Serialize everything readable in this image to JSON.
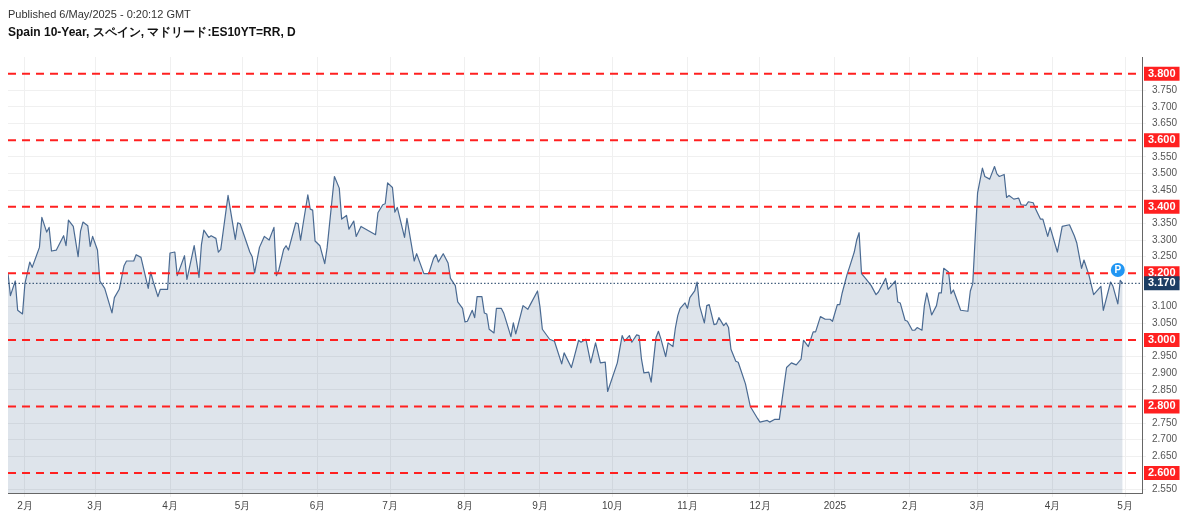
{
  "chart_data": {
    "type": "area",
    "title": "Spain 10-Year, スペイン, マドリード:ES10YT=RR, D",
    "annotations": [
      "Published 6/May/2025 - 0:20:12 GMT",
      {
        "text": "P",
        "x": "2025-04-28",
        "y": 3.21
      }
    ],
    "series": [
      {
        "color": "#4a6a92",
        "x": [
          "2024-01-25",
          "2024-01-26",
          "2024-01-28",
          "2024-01-29",
          "2024-01-31",
          "2024-02-01",
          "2024-02-03",
          "2024-02-04",
          "2024-02-07",
          "2024-02-08",
          "2024-02-10",
          "2024-02-11",
          "2024-02-12",
          "2024-02-14",
          "2024-02-17",
          "2024-02-18",
          "2024-02-19",
          "2024-02-21",
          "2024-02-23",
          "2024-02-24",
          "2024-02-25",
          "2024-02-27",
          "2024-02-28",
          "2024-02-29",
          "2024-03-02",
          "2024-03-03",
          "2024-03-05",
          "2024-03-08",
          "2024-03-09",
          "2024-03-11",
          "2024-03-13",
          "2024-03-14",
          "2024-03-17",
          "2024-03-18",
          "2024-03-20",
          "2024-03-23",
          "2024-03-24",
          "2024-03-25",
          "2024-03-27",
          "2024-03-28",
          "2024-03-31",
          "2024-04-01",
          "2024-04-03",
          "2024-04-04",
          "2024-04-07",
          "2024-04-08",
          "2024-04-11",
          "2024-04-13",
          "2024-04-14",
          "2024-04-15",
          "2024-04-17",
          "2024-04-18",
          "2024-04-20",
          "2024-04-21",
          "2024-04-22",
          "2024-04-25",
          "2024-04-28",
          "2024-04-29",
          "2024-04-30",
          "2024-05-04",
          "2024-05-05",
          "2024-05-06",
          "2024-05-08",
          "2024-05-10",
          "2024-05-12",
          "2024-05-14",
          "2024-05-15",
          "2024-05-16",
          "2024-05-18",
          "2024-05-19",
          "2024-05-20",
          "2024-05-23",
          "2024-05-24",
          "2024-05-25",
          "2024-05-26",
          "2024-05-28",
          "2024-05-29",
          "2024-05-30",
          "2024-05-31",
          "2024-06-02",
          "2024-06-04",
          "2024-06-05",
          "2024-06-08",
          "2024-06-10",
          "2024-06-11",
          "2024-06-13",
          "2024-06-14",
          "2024-06-16",
          "2024-06-17",
          "2024-06-19",
          "2024-06-25",
          "2024-06-26",
          "2024-06-28",
          "2024-06-29",
          "2024-06-30",
          "2024-07-02",
          "2024-07-03",
          "2024-07-04",
          "2024-07-07",
          "2024-07-08",
          "2024-07-11",
          "2024-07-12",
          "2024-07-15",
          "2024-07-17",
          "2024-07-19",
          "2024-07-20",
          "2024-07-21",
          "2024-07-23",
          "2024-07-25",
          "2024-07-26",
          "2024-07-28",
          "2024-07-29",
          "2024-07-31",
          "2024-08-01",
          "2024-08-02",
          "2024-08-04",
          "2024-08-05",
          "2024-08-06",
          "2024-08-08",
          "2024-08-09",
          "2024-08-10",
          "2024-08-11",
          "2024-08-13",
          "2024-08-14",
          "2024-08-16",
          "2024-08-17",
          "2024-08-20",
          "2024-08-21",
          "2024-08-22",
          "2024-08-23",
          "2024-08-25",
          "2024-08-27",
          "2024-08-28",
          "2024-08-31",
          "2024-09-01",
          "2024-09-02",
          "2024-09-05",
          "2024-09-07",
          "2024-09-10",
          "2024-09-11",
          "2024-09-14",
          "2024-09-15",
          "2024-09-17",
          "2024-09-18",
          "2024-09-20",
          "2024-09-22",
          "2024-09-24",
          "2024-09-26",
          "2024-09-28",
          "2024-09-29",
          "2024-10-03",
          "2024-10-05",
          "2024-10-06",
          "2024-10-08",
          "2024-10-09",
          "2024-10-11",
          "2024-10-12",
          "2024-10-13",
          "2024-10-14",
          "2024-10-16",
          "2024-10-17",
          "2024-10-19",
          "2024-10-20",
          "2024-10-21",
          "2024-10-23",
          "2024-10-24",
          "2024-10-26",
          "2024-10-27",
          "2024-10-28",
          "2024-10-29",
          "2024-10-31",
          "2024-11-01",
          "2024-11-02",
          "2024-11-04",
          "2024-11-05",
          "2024-11-06",
          "2024-11-08",
          "2024-11-09",
          "2024-11-10",
          "2024-11-12",
          "2024-11-13",
          "2024-11-14",
          "2024-11-16",
          "2024-11-17",
          "2024-11-18",
          "2024-11-19",
          "2024-11-21",
          "2024-11-22",
          "2024-11-25",
          "2024-11-27",
          "2024-11-30",
          "2024-12-01",
          "2024-12-04",
          "2024-12-05",
          "2024-12-07",
          "2024-12-09",
          "2024-12-10",
          "2024-12-12",
          "2024-12-14",
          "2024-12-16",
          "2024-12-18",
          "2024-12-19",
          "2024-12-21",
          "2024-12-23",
          "2024-12-24",
          "2024-12-26",
          "2024-12-28",
          "2024-12-30",
          "2024-12-31",
          "2025-01-02",
          "2025-01-03",
          "2025-01-04",
          "2025-01-06",
          "2025-01-07",
          "2025-01-09",
          "2025-01-10",
          "2025-01-11",
          "2025-01-12",
          "2025-01-14",
          "2025-01-16",
          "2025-01-18",
          "2025-01-19",
          "2025-01-22",
          "2025-01-23",
          "2025-01-26",
          "2025-01-27",
          "2025-01-28",
          "2025-01-30",
          "2025-01-31",
          "2025-02-02",
          "2025-02-03",
          "2025-02-04",
          "2025-02-06",
          "2025-02-07",
          "2025-02-08",
          "2025-02-10",
          "2025-02-12",
          "2025-02-13",
          "2025-02-14",
          "2025-02-15",
          "2025-02-17",
          "2025-02-18",
          "2025-02-19",
          "2025-02-22",
          "2025-02-25",
          "2025-02-26",
          "2025-02-27",
          "2025-03-01",
          "2025-03-03",
          "2025-03-04",
          "2025-03-06",
          "2025-03-08",
          "2025-03-09",
          "2025-03-10",
          "2025-03-12",
          "2025-03-13",
          "2025-03-14",
          "2025-03-16",
          "2025-03-18",
          "2025-03-19",
          "2025-03-21",
          "2025-03-22",
          "2025-03-24",
          "2025-03-25",
          "2025-03-27",
          "2025-03-28",
          "2025-03-30",
          "2025-03-31",
          "2025-04-03",
          "2025-04-05",
          "2025-04-08",
          "2025-04-10",
          "2025-04-11",
          "2025-04-13",
          "2025-04-14",
          "2025-04-16",
          "2025-04-18",
          "2025-04-21",
          "2025-04-22",
          "2025-04-25",
          "2025-04-26",
          "2025-04-28",
          "2025-04-29",
          "2025-04-30"
        ],
        "values": [
          3.201,
          3.133,
          3.177,
          3.089,
          3.078,
          3.169,
          3.234,
          3.218,
          3.278,
          3.368,
          3.324,
          3.338,
          3.267,
          3.27,
          3.313,
          3.283,
          3.36,
          3.341,
          3.25,
          3.327,
          3.354,
          3.343,
          3.281,
          3.311,
          3.27,
          3.177,
          3.155,
          3.081,
          3.127,
          3.152,
          3.223,
          3.237,
          3.237,
          3.256,
          3.248,
          3.155,
          3.204,
          3.177,
          3.13,
          3.152,
          3.152,
          3.261,
          3.264,
          3.193,
          3.253,
          3.182,
          3.283,
          3.188,
          3.286,
          3.33,
          3.308,
          3.313,
          3.305,
          3.264,
          3.272,
          3.434,
          3.302,
          3.352,
          3.349,
          3.264,
          3.25,
          3.201,
          3.278,
          3.311,
          3.3,
          3.338,
          3.193,
          3.21,
          3.272,
          3.283,
          3.27,
          3.352,
          3.349,
          3.3,
          3.346,
          3.436,
          3.393,
          3.39,
          3.297,
          3.283,
          3.229,
          3.278,
          3.491,
          3.456,
          3.363,
          3.374,
          3.333,
          3.357,
          3.311,
          3.341,
          3.316,
          3.382,
          3.406,
          3.409,
          3.472,
          3.458,
          3.384,
          3.398,
          3.308,
          3.365,
          3.237,
          3.259,
          3.199,
          3.199,
          3.245,
          3.256,
          3.234,
          3.259,
          3.231,
          3.185,
          3.163,
          3.114,
          3.095,
          3.054,
          3.056,
          3.089,
          3.067,
          3.13,
          3.13,
          3.081,
          3.078,
          3.032,
          3.021,
          3.095,
          3.095,
          3.081,
          3.01,
          3.051,
          3.018,
          3.046,
          3.103,
          3.092,
          3.106,
          3.147,
          3.1,
          3.032,
          3.002,
          2.996,
          2.928,
          2.961,
          2.917,
          2.944,
          2.999,
          2.993,
          3.002,
          2.931,
          2.991,
          2.931,
          2.933,
          2.845,
          2.931,
          3.013,
          2.996,
          3.013,
          2.993,
          3.015,
          3.013,
          2.942,
          2.901,
          2.903,
          2.873,
          3.007,
          3.026,
          3.004,
          2.95,
          2.991,
          2.98,
          3.035,
          3.073,
          3.095,
          3.111,
          3.095,
          3.127,
          3.147,
          3.174,
          3.103,
          3.051,
          3.103,
          3.106,
          3.046,
          3.048,
          3.067,
          3.043,
          3.051,
          3.037,
          2.972,
          2.936,
          2.933,
          2.868,
          2.8,
          2.764,
          2.753,
          2.758,
          2.753,
          2.761,
          2.761,
          2.813,
          2.917,
          2.931,
          2.925,
          2.942,
          2.999,
          2.98,
          3.024,
          3.024,
          3.07,
          3.062,
          3.062,
          3.056,
          3.106,
          3.106,
          3.141,
          3.196,
          3.218,
          3.264,
          3.3,
          3.322,
          3.199,
          3.182,
          3.163,
          3.136,
          3.144,
          3.185,
          3.152,
          3.177,
          3.114,
          3.111,
          3.059,
          3.056,
          3.029,
          3.029,
          3.037,
          3.029,
          3.103,
          3.141,
          3.075,
          3.103,
          3.141,
          3.141,
          3.215,
          3.204,
          3.139,
          3.15,
          3.089,
          3.086,
          3.147,
          3.169,
          3.442,
          3.516,
          3.491,
          3.483,
          3.521,
          3.499,
          3.491,
          3.497,
          3.428,
          3.434,
          3.423,
          3.426,
          3.406,
          3.404,
          3.415,
          3.412,
          3.393,
          3.363,
          3.363,
          3.311,
          3.338,
          3.264,
          3.341,
          3.346,
          3.313,
          3.292,
          3.215,
          3.24,
          3.196,
          3.136,
          3.161,
          3.089,
          3.174,
          3.161,
          3.108,
          3.179,
          3.17
        ]
      }
    ],
    "xlim": [
      "2024-01-25",
      "2025-05-08"
    ],
    "xticks": [
      {
        "value": "2024-02",
        "label": "2月"
      },
      {
        "value": "2024-03",
        "label": "3月"
      },
      {
        "value": "2024-04",
        "label": "4月"
      },
      {
        "value": "2024-05",
        "label": "5月"
      },
      {
        "value": "2024-06",
        "label": "6月"
      },
      {
        "value": "2024-07",
        "label": "7月"
      },
      {
        "value": "2024-08",
        "label": "8月"
      },
      {
        "value": "2024-09",
        "label": "9月"
      },
      {
        "value": "2024-10",
        "label": "10月"
      },
      {
        "value": "2024-11",
        "label": "11月"
      },
      {
        "value": "2024-12",
        "label": "12月"
      },
      {
        "value": "2025-01",
        "label": "2025"
      },
      {
        "value": "2025-02",
        "label": "2月"
      },
      {
        "value": "2025-03",
        "label": "3月"
      },
      {
        "value": "2025-04",
        "label": "4月"
      },
      {
        "value": "2025-05",
        "label": "5月"
      }
    ],
    "ylim": [
      2.54,
      3.85
    ],
    "yticks": [
      {
        "value": 2.55,
        "label": "2.550"
      },
      {
        "value": 2.65,
        "label": "2.650"
      },
      {
        "value": 2.7,
        "label": "2.700"
      },
      {
        "value": 2.75,
        "label": "2.750"
      },
      {
        "value": 2.85,
        "label": "2.850"
      },
      {
        "value": 2.9,
        "label": "2.900"
      },
      {
        "value": 2.95,
        "label": "2.950"
      },
      {
        "value": 3.05,
        "label": "3.050"
      },
      {
        "value": 3.1,
        "label": "3.100"
      },
      {
        "value": 3.25,
        "label": "3.250"
      },
      {
        "value": 3.3,
        "label": "3.300"
      },
      {
        "value": 3.35,
        "label": "3.350"
      },
      {
        "value": 3.45,
        "label": "3.450"
      },
      {
        "value": 3.5,
        "label": "3.500"
      },
      {
        "value": 3.55,
        "label": "3.550"
      },
      {
        "value": 3.65,
        "label": "3.650"
      },
      {
        "value": 3.7,
        "label": "3.700"
      },
      {
        "value": 3.75,
        "label": "3.750"
      }
    ],
    "ref_lines": [
      {
        "axis": "y",
        "value": 3.8,
        "label": "3.800",
        "color": "#ff2020",
        "line_style": "dashed"
      },
      {
        "axis": "y",
        "value": 3.6,
        "label": "3.600",
        "color": "#ff2020",
        "line_style": "dashed"
      },
      {
        "axis": "y",
        "value": 3.4,
        "label": "3.400",
        "color": "#ff2020",
        "line_style": "dashed"
      },
      {
        "axis": "y",
        "value": 3.2,
        "label": "3.200",
        "color": "#ff2020",
        "line_style": "dashed"
      },
      {
        "axis": "y",
        "value": 3.0,
        "label": "3.000",
        "color": "#ff2020",
        "line_style": "dashed"
      },
      {
        "axis": "y",
        "value": 2.8,
        "label": "2.800",
        "color": "#ff2020",
        "line_style": "dashed"
      },
      {
        "axis": "y",
        "value": 2.6,
        "label": "2.600",
        "color": "#ff2020",
        "line_style": "dashed"
      },
      {
        "axis": "y",
        "value": 3.17,
        "label": "3.170",
        "color": "#1c3d63",
        "line_style": "dotted"
      }
    ],
    "grid": true,
    "legend": false,
    "marker": "none",
    "line_style": "solid"
  }
}
